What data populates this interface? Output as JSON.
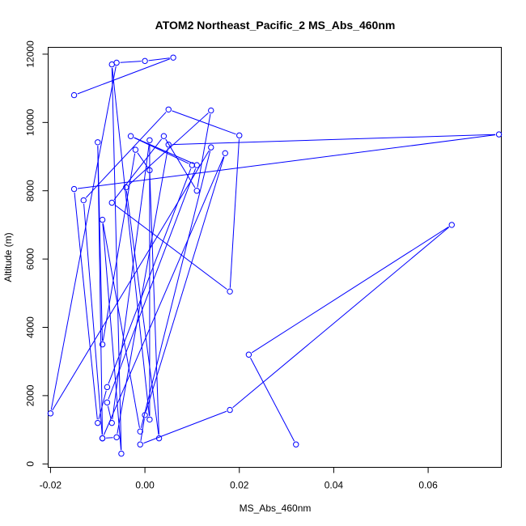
{
  "chart_data": {
    "type": "line",
    "title": "ATOM2 Northeast_Pacific_2 MS_Abs_460nm",
    "xlabel": "MS_Abs_460nm",
    "ylabel": "Altitude (m)",
    "xlim": [
      -0.0205,
      0.0755
    ],
    "ylim": [
      -100,
      12200
    ],
    "xticks": [
      -0.02,
      0.0,
      0.02,
      0.04,
      0.06
    ],
    "xtick_labels": [
      "-0.02",
      "0.00",
      "0.02",
      "0.04",
      "0.06"
    ],
    "yticks": [
      0,
      2000,
      4000,
      6000,
      8000,
      10000,
      12000
    ],
    "ytick_labels": [
      "0",
      "2000",
      "4000",
      "6000",
      "8000",
      "10000",
      "12000"
    ],
    "grid": false,
    "color": "#0000ff",
    "series": [
      {
        "points": [
          {
            "x": 0.032,
            "y": 570
          },
          {
            "x": 0.022,
            "y": 3200
          },
          {
            "x": 0.065,
            "y": 7000
          },
          {
            "x": 0.018,
            "y": 1580
          },
          {
            "x": -0.001,
            "y": 570
          },
          {
            "x": 0.0,
            "y": 1430
          },
          {
            "x": 0.017,
            "y": 9100
          },
          {
            "x": -0.009,
            "y": 750
          },
          {
            "x": -0.01,
            "y": 9420
          },
          {
            "x": -0.009,
            "y": 3500
          },
          {
            "x": -0.002,
            "y": 9200
          },
          {
            "x": 0.001,
            "y": 8600
          },
          {
            "x": 0.003,
            "y": 750
          },
          {
            "x": -0.004,
            "y": 8100
          },
          {
            "x": 0.014,
            "y": 10350
          },
          {
            "x": 0.011,
            "y": 8000
          },
          {
            "x": 0.004,
            "y": 9600
          },
          {
            "x": -0.007,
            "y": 7650
          },
          {
            "x": 0.018,
            "y": 5050
          },
          {
            "x": 0.02,
            "y": 9620
          },
          {
            "x": 0.005,
            "y": 10380
          },
          {
            "x": -0.013,
            "y": 7720
          },
          {
            "x": -0.009,
            "y": 750
          },
          {
            "x": -0.006,
            "y": 780
          },
          {
            "x": 0.005,
            "y": 9350
          },
          {
            "x": 0.075,
            "y": 9650
          },
          {
            "x": -0.015,
            "y": 8050
          },
          {
            "x": -0.01,
            "y": 1200
          },
          {
            "x": -0.008,
            "y": 2250
          },
          {
            "x": 0.01,
            "y": 8750
          },
          {
            "x": -0.003,
            "y": 9600
          },
          {
            "x": 0.011,
            "y": 8750
          },
          {
            "x": -0.008,
            "y": 1800
          },
          {
            "x": -0.007,
            "y": 1200
          },
          {
            "x": 0.001,
            "y": 9480
          },
          {
            "x": 0.001,
            "y": 1300
          },
          {
            "x": -0.007,
            "y": 11700
          },
          {
            "x": -0.005,
            "y": 300
          },
          {
            "x": -0.009,
            "y": 7150
          },
          {
            "x": -0.001,
            "y": 950
          },
          {
            "x": 0.014,
            "y": 9270
          },
          {
            "x": -0.02,
            "y": 1480
          },
          {
            "x": -0.006,
            "y": 11750
          },
          {
            "x": 0.0,
            "y": 11800
          },
          {
            "x": 0.006,
            "y": 11900
          },
          {
            "x": -0.015,
            "y": 10800
          }
        ]
      }
    ]
  }
}
